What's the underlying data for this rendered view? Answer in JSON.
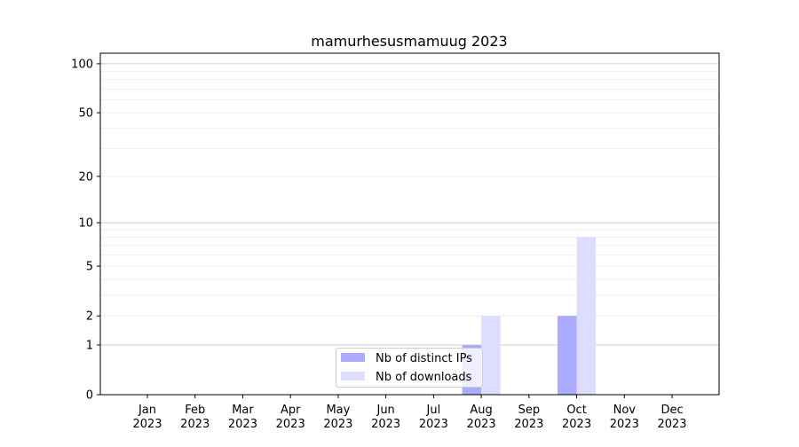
{
  "chart_data": {
    "type": "bar",
    "title": "mamurhesusmamuug 2023",
    "xlabel": "",
    "ylabel": "",
    "yscale": "log(1+y)",
    "ylim": [
      0,
      116
    ],
    "yticks": [
      0,
      1,
      2,
      5,
      10,
      20,
      50,
      100
    ],
    "grid": true,
    "legend_position": "lower-center",
    "categories": [
      [
        "Jan",
        "2023"
      ],
      [
        "Feb",
        "2023"
      ],
      [
        "Mar",
        "2023"
      ],
      [
        "Apr",
        "2023"
      ],
      [
        "May",
        "2023"
      ],
      [
        "Jun",
        "2023"
      ],
      [
        "Jul",
        "2023"
      ],
      [
        "Aug",
        "2023"
      ],
      [
        "Sep",
        "2023"
      ],
      [
        "Oct",
        "2023"
      ],
      [
        "Nov",
        "2023"
      ],
      [
        "Dec",
        "2023"
      ]
    ],
    "series": [
      {
        "name": "Nb of distinct IPs",
        "color": "#aaaaff",
        "values": [
          0,
          0,
          0,
          0,
          0,
          0,
          0,
          1,
          0,
          2,
          0,
          0
        ]
      },
      {
        "name": "Nb of downloads",
        "color": "#ddddff",
        "values": [
          0,
          0,
          0,
          0,
          0,
          0,
          0,
          2,
          0,
          8,
          0,
          0
        ]
      }
    ]
  }
}
